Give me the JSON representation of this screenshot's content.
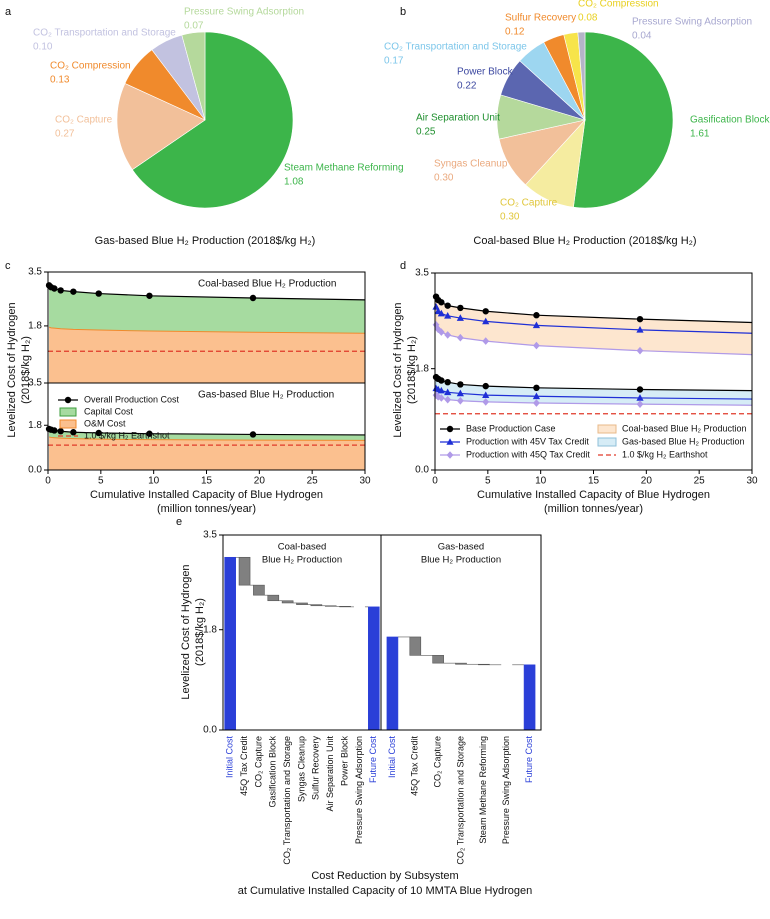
{
  "chart_data": [
    {
      "type": "pie",
      "panel": "a",
      "title": "Gas-based Blue H₂ Production (2018$/kg H₂)",
      "categories": [
        "Steam Methane Reforming",
        "CO₂ Capture",
        "CO₂ Compression",
        "CO₂ Transportation and Storage",
        "Pressure Swing Adsorption"
      ],
      "values": [
        1.08,
        0.27,
        0.13,
        0.1,
        0.07
      ],
      "value_labels": [
        "1.08",
        "0.27",
        "0.13",
        "0.10",
        "0.07"
      ],
      "colors": [
        "#3cb54a",
        "#f2c09a",
        "#f08a2c",
        "#c2c2e0",
        "#b5d99c"
      ]
    },
    {
      "type": "pie",
      "panel": "b",
      "title": "Coal-based Blue H₂ Production (2018$/kg H₂)",
      "categories": [
        "Gasification Block",
        "CO₂ Capture",
        "Syngas Cleanup",
        "Air Separation Unit",
        "Power Block",
        "CO₂ Transportation and Storage",
        "Sulfur Recovery",
        "CO₂ Compression",
        "Pressure Swing Adsorption"
      ],
      "values": [
        1.61,
        0.3,
        0.3,
        0.25,
        0.22,
        0.17,
        0.12,
        0.08,
        0.04
      ],
      "value_labels": [
        "1.61",
        "0.30",
        "0.30",
        "0.25",
        "0.22",
        "0.17",
        "0.12",
        "0.08",
        "0.04"
      ],
      "colors": [
        "#3cb54a",
        "#f5eca0",
        "#f2c09a",
        "#b5d99c",
        "#5b66b0",
        "#9dd6f0",
        "#f08a2c",
        "#f7e44a",
        "#b4b4c8"
      ],
      "label_colors": [
        "#3cb54a",
        "#e0c63a",
        "#eaa97e",
        "#1f8f2e",
        "#3c48a0",
        "#7cc6ea",
        "#f08a2c",
        "#e8d020",
        "#a8a8d0"
      ]
    },
    {
      "type": "stacked-area",
      "panel": "c",
      "ylabel": [
        "Levelized Cost of Hydrogen",
        "(2018$/kg H₂)"
      ],
      "xlabel": [
        "Cumulative Installed Capacity of Blue Hydrogen",
        "(million tonnes/year)"
      ],
      "x": [
        0.1,
        0.3,
        0.6,
        1.2,
        2.4,
        4.8,
        9.6,
        19.4,
        30
      ],
      "xlim": [
        0,
        30
      ],
      "xticks": [
        0,
        5,
        10,
        15,
        20,
        25,
        30
      ],
      "series": [
        {
          "name": "Overall Production Cost",
          "color": "#000000"
        },
        {
          "name": "Capital Cost",
          "color": "#a6dba0",
          "edge": "#3c9e3c"
        },
        {
          "name": "O&M Cost",
          "color": "#fbc08f",
          "edge": "#f08a2c"
        }
      ],
      "hline": {
        "name": "1.0 $/kg H₂ Earthshot",
        "value": 1.0,
        "color": "#e03a2a"
      },
      "panels": [
        {
          "subtitle": "Coal-based Blue H₂ Production",
          "ylim": [
            0,
            3.5
          ],
          "yticks": [
            1.8,
            3.5
          ],
          "values": [
            [
              3.08,
              3.02,
              2.98,
              2.92,
              2.88,
              2.82,
              2.75,
              2.68,
              2.62
            ],
            [
              1.32,
              1.28,
              1.25,
              1.21,
              1.19,
              1.15,
              1.11,
              1.08,
              1.05
            ],
            [
              1.76,
              1.74,
              1.73,
              1.71,
              1.69,
              1.67,
              1.64,
              1.6,
              1.57
            ]
          ]
        },
        {
          "subtitle": "Gas-based Blue H₂ Production",
          "ylim": [
            0,
            3.5
          ],
          "yticks": [
            {
              "value": 0,
              "label": "0.0"
            },
            1.8,
            3.5
          ],
          "values": [
            [
              1.65,
              1.62,
              1.59,
              1.56,
              1.52,
              1.49,
              1.46,
              1.43,
              1.41
            ],
            [
              0.32,
              0.31,
              0.29,
              0.28,
              0.26,
              0.25,
              0.24,
              0.23,
              0.22
            ],
            [
              1.33,
              1.31,
              1.3,
              1.28,
              1.26,
              1.24,
              1.22,
              1.2,
              1.19
            ]
          ]
        }
      ]
    },
    {
      "type": "line",
      "panel": "d",
      "ylabel": [
        "Levelized Cost of Hydrogen",
        "(2018$/kg H₂)"
      ],
      "xlabel": [
        "Cumulative Installed Capacity of Blue Hydrogen",
        "(million tonnes/year)"
      ],
      "x": [
        0.1,
        0.3,
        0.6,
        1.2,
        2.4,
        4.8,
        9.6,
        19.4,
        30
      ],
      "xlim": [
        0,
        30
      ],
      "xticks": [
        0,
        5,
        10,
        15,
        20,
        25,
        30
      ],
      "ylim": [
        0,
        3.5
      ],
      "yticks": [
        {
          "value": 0,
          "label": "0.0"
        },
        1.8,
        3.5
      ],
      "series": [
        {
          "name": "Base Production Case",
          "color": "#000000",
          "marker": "circle"
        },
        {
          "name": "Production with 45V Tax Credit",
          "color": "#1f2fd6",
          "marker": "triangle"
        },
        {
          "name": "Production with 45Q Tax Credit",
          "color": "#b09ae8",
          "marker": "diamond"
        }
      ],
      "groups": [
        {
          "name": "Coal-based Blue H₂ Production",
          "fill": "#fde6cf",
          "edge": "#e8b98a",
          "values": [
            [
              3.08,
              3.02,
              2.98,
              2.92,
              2.88,
              2.82,
              2.75,
              2.68,
              2.62
            ],
            [
              2.9,
              2.82,
              2.78,
              2.74,
              2.7,
              2.64,
              2.57,
              2.49,
              2.43
            ],
            [
              2.58,
              2.5,
              2.45,
              2.4,
              2.35,
              2.29,
              2.21,
              2.12,
              2.05
            ]
          ]
        },
        {
          "name": "Gas-based Blue H₂ Production",
          "fill": "#d6ecf6",
          "edge": "#8fbfd8",
          "values": [
            [
              1.65,
              1.62,
              1.59,
              1.56,
              1.52,
              1.49,
              1.46,
              1.43,
              1.41
            ],
            [
              1.45,
              1.43,
              1.41,
              1.38,
              1.36,
              1.33,
              1.31,
              1.28,
              1.26
            ],
            [
              1.33,
              1.3,
              1.28,
              1.25,
              1.23,
              1.21,
              1.19,
              1.17,
              1.15
            ]
          ]
        }
      ],
      "hline": {
        "name": "1.0 $/kg H₂ Earthshot",
        "value": 1.0,
        "color": "#e03a2a"
      }
    },
    {
      "type": "waterfall",
      "panel": "e",
      "ylabel": [
        "Levelized Cost of Hydrogen",
        "(2018$/kg H₂)"
      ],
      "xlabel": [
        "Cost Reduction by Subsystem",
        "at Cumulative Installed Capacity of 10 MMTA Blue Hydrogen"
      ],
      "ylim": [
        0,
        3.5
      ],
      "yticks": [
        {
          "value": 0,
          "label": "0.0"
        },
        1.8,
        3.5
      ],
      "total_color": "#2a3fd8",
      "change_color": "#808080",
      "groups": [
        {
          "title": [
            "Coal-based",
            "Blue H₂ Production"
          ],
          "categories": [
            "Initial Cost",
            "45Q Tax Credit",
            "CO₂ Capture",
            "Gasification Block",
            "CO₂ Transportation and Storage",
            "Syngas Cleanup",
            "Sulfur Recovery",
            "Air Separation Unit",
            "Power Block",
            "Pressure Swing Adsorption",
            "Future Cost"
          ],
          "values": [
            3.1,
            -0.5,
            -0.18,
            -0.1,
            -0.04,
            -0.03,
            -0.02,
            -0.01,
            -0.01,
            0,
            2.21
          ],
          "measure": [
            "total",
            "change",
            "change",
            "change",
            "change",
            "change",
            "change",
            "change",
            "change",
            "change",
            "total"
          ]
        },
        {
          "title": [
            "Gas-based",
            "Blue H₂ Production"
          ],
          "categories": [
            "Initial Cost",
            "45Q Tax Credit",
            "CO₂ Capture",
            "CO₂ Transportation and Storage",
            "Steam Methane Reforming",
            "Pressure Swing Adsorption",
            "Future Cost"
          ],
          "values": [
            1.67,
            -0.33,
            -0.14,
            -0.02,
            -0.01,
            0,
            1.17
          ],
          "measure": [
            "total",
            "change",
            "change",
            "change",
            "change",
            "change",
            "total"
          ]
        }
      ]
    }
  ]
}
